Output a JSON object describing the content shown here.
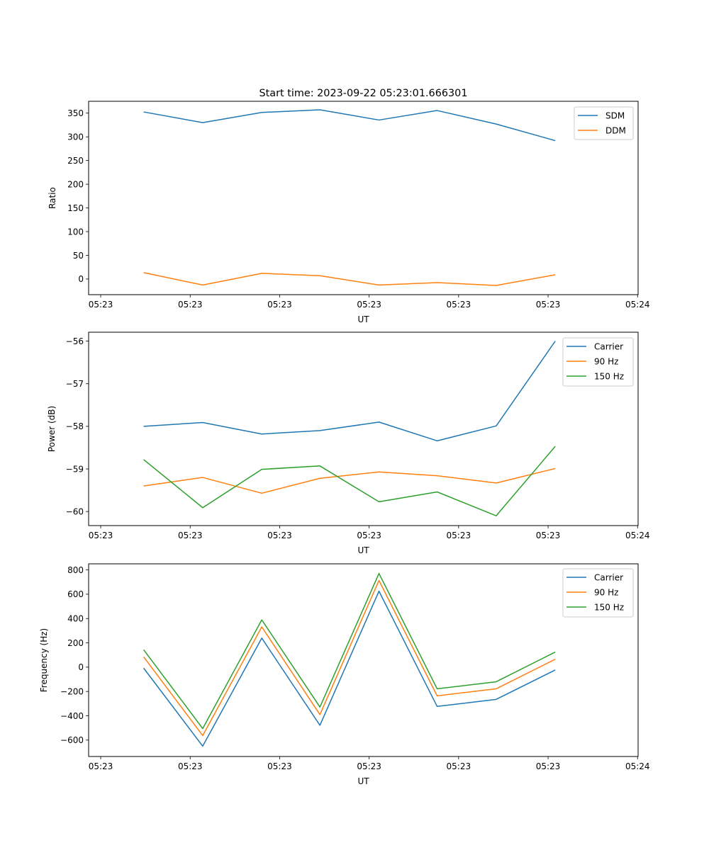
{
  "figure": {
    "title": "Start time: 2023-09-22 05:23:01.666301"
  },
  "chart_data": [
    {
      "type": "line",
      "title": "Start time: 2023-09-22 05:23:01.666301",
      "xlabel": "UT",
      "ylabel": "Ratio",
      "x_unit": "seconds after 05:23:00",
      "x": [
        4.8,
        11.4,
        18.0,
        24.5,
        31.1,
        37.6,
        44.2,
        50.8
      ],
      "xlim": [
        -1.35,
        60.06
      ],
      "xticks": [
        0,
        10,
        20,
        30,
        40,
        50,
        60
      ],
      "xtick_labels": [
        "05:23",
        "05:23",
        "05:23",
        "05:23",
        "05:23",
        "05:23",
        "05:24"
      ],
      "ylim": [
        -33,
        375
      ],
      "yticks": [
        0,
        50,
        100,
        150,
        200,
        250,
        300,
        350
      ],
      "ytick_labels": [
        "0",
        "50",
        "100",
        "150",
        "200",
        "250",
        "300",
        "350"
      ],
      "grid": false,
      "legend_position": "top-right",
      "series": [
        {
          "name": "SDM",
          "color": "#1f77b4",
          "values": [
            352.5,
            330,
            351.5,
            357,
            335.5,
            355.5,
            327,
            292
          ]
        },
        {
          "name": "DDM",
          "color": "#ff7f0e",
          "values": [
            13.5,
            -12.7,
            12,
            7,
            -12.7,
            -7.5,
            -13.5,
            9
          ]
        }
      ]
    },
    {
      "type": "line",
      "title": "",
      "xlabel": "UT",
      "ylabel": "Power (dB)",
      "x_unit": "seconds after 05:23:00",
      "x": [
        4.8,
        11.4,
        18.0,
        24.5,
        31.1,
        37.6,
        44.2,
        50.8
      ],
      "xlim": [
        -1.35,
        60.06
      ],
      "xticks": [
        0,
        10,
        20,
        30,
        40,
        50,
        60
      ],
      "xtick_labels": [
        "05:23",
        "05:23",
        "05:23",
        "05:23",
        "05:23",
        "05:23",
        "05:24"
      ],
      "ylim": [
        -60.33,
        -55.79
      ],
      "yticks": [
        -60,
        -59,
        -58,
        -57,
        -56
      ],
      "ytick_labels": [
        "−60",
        "−59",
        "−58",
        "−57",
        "−56"
      ],
      "grid": false,
      "legend_position": "top-right",
      "series": [
        {
          "name": "Carrier",
          "color": "#1f77b4",
          "values": [
            -58.0,
            -57.91,
            -58.18,
            -58.1,
            -57.9,
            -58.34,
            -57.99,
            -56.0
          ]
        },
        {
          "name": "90 Hz",
          "color": "#ff7f0e",
          "values": [
            -59.4,
            -59.2,
            -59.57,
            -59.22,
            -59.07,
            -59.16,
            -59.33,
            -58.99
          ]
        },
        {
          "name": "150 Hz",
          "color": "#2ca02c",
          "values": [
            -58.78,
            -59.91,
            -59.01,
            -58.93,
            -59.77,
            -59.54,
            -60.1,
            -58.47
          ]
        }
      ]
    },
    {
      "type": "line",
      "title": "",
      "xlabel": "UT",
      "ylabel": "Frequency (Hz)",
      "x_unit": "seconds after 05:23:00",
      "x": [
        4.8,
        11.4,
        18.0,
        24.5,
        31.1,
        37.6,
        44.2,
        50.8
      ],
      "xlim": [
        -1.35,
        60.06
      ],
      "xticks": [
        0,
        10,
        20,
        30,
        40,
        50,
        60
      ],
      "xtick_labels": [
        "05:23",
        "05:23",
        "05:23",
        "05:23",
        "05:23",
        "05:23",
        "05:24"
      ],
      "ylim": [
        -735,
        850
      ],
      "yticks": [
        -600,
        -400,
        -200,
        0,
        200,
        400,
        600,
        800
      ],
      "ytick_labels": [
        "−600",
        "−400",
        "−200",
        "0",
        "200",
        "400",
        "600",
        "800"
      ],
      "grid": false,
      "legend_position": "top-right",
      "series": [
        {
          "name": "Carrier",
          "color": "#1f77b4",
          "values": [
            -8,
            -650,
            239,
            -478,
            625,
            -323,
            -265,
            -23
          ]
        },
        {
          "name": "90 Hz",
          "color": "#ff7f0e",
          "values": [
            85,
            -563,
            331,
            -390,
            713,
            -236,
            -178,
            65
          ]
        },
        {
          "name": "150 Hz",
          "color": "#2ca02c",
          "values": [
            143,
            -505,
            389,
            -328,
            771,
            -178,
            -120,
            124
          ]
        }
      ]
    }
  ]
}
